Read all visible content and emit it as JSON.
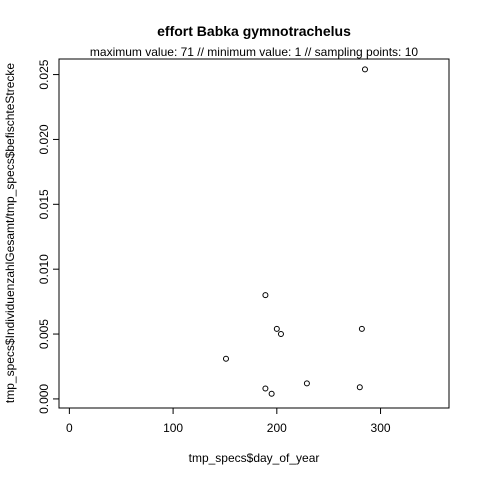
{
  "chart_data": {
    "type": "scatter",
    "title": "effort Babka gymnotrachelus",
    "subtitle": "maximum value: 71  //  minimum value: 1  // sampling points: 10",
    "xlabel": "tmp_specs$day_of_year",
    "ylabel": "tmp_specs$IndividuenzahlGesamt/tmp_specs$befischteStrecke",
    "xlim": [
      -10,
      366
    ],
    "ylim": [
      -0.0007,
      0.0262
    ],
    "x_ticks": [
      0,
      100,
      200,
      300
    ],
    "x_tick_labels": [
      "0",
      "100",
      "200",
      "300"
    ],
    "y_ticks": [
      0.0,
      0.005,
      0.01,
      0.015,
      0.02,
      0.025
    ],
    "y_tick_labels": [
      "0.000",
      "0.005",
      "0.010",
      "0.015",
      "0.020",
      "0.025"
    ],
    "grid": false,
    "points": [
      {
        "x": 151,
        "y": 0.0031
      },
      {
        "x": 189,
        "y": 0.008
      },
      {
        "x": 189,
        "y": 0.0008
      },
      {
        "x": 195,
        "y": 0.0004
      },
      {
        "x": 200,
        "y": 0.0054
      },
      {
        "x": 204,
        "y": 0.005
      },
      {
        "x": 229,
        "y": 0.0012
      },
      {
        "x": 280,
        "y": 0.0009
      },
      {
        "x": 282,
        "y": 0.0054
      },
      {
        "x": 285,
        "y": 0.0254
      }
    ]
  }
}
